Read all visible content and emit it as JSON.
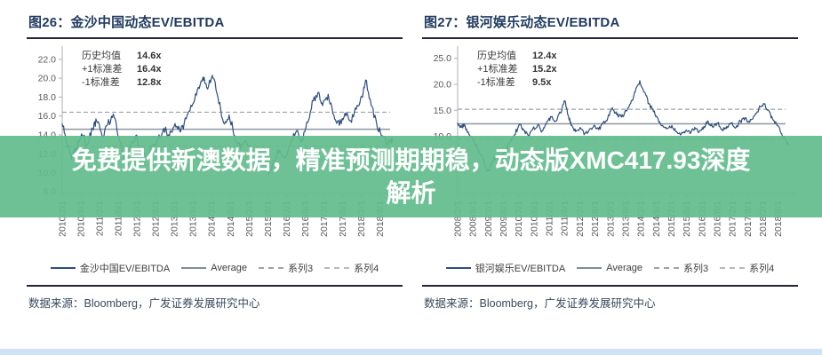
{
  "watermark": {
    "text": "免费提供新澳数据，精准预测期期稳，动态版XMC417.93深度解析",
    "lines": [
      "免费提供新澳数据，精准预测期期稳，动态版XMC417.93深度",
      "解析"
    ],
    "bg_color": "#62bc8c",
    "text_color": "#ffffff"
  },
  "colors": {
    "main_line": "#2e4e7e",
    "average_line": "#8e979e",
    "sd_line": "#9aa2a9",
    "axis": "#b9bdc2",
    "tick_text": "#595959",
    "title_text": "#1f3a5f"
  },
  "panels": [
    {
      "title": "图26：金沙中国动态EV/EBITDA",
      "stats": [
        {
          "label": "历史均值",
          "value": "14.6x"
        },
        {
          "label": "+1标准差",
          "value": "16.4x"
        },
        {
          "label": "-1标准差",
          "value": "12.8x"
        }
      ],
      "legend": [
        "金沙中国EV/EBITDA",
        "Average",
        "系列3",
        "系列4"
      ],
      "source": "数据来源：Bloomberg，广发证券发展研究中心"
    },
    {
      "title": "图27：银河娱乐动态EV/EBITDA",
      "stats": [
        {
          "label": "历史均值",
          "value": "12.4x"
        },
        {
          "label": "+1标准差",
          "value": "15.2x"
        },
        {
          "label": "-1标准差",
          "value": "9.5x"
        }
      ],
      "legend": [
        "银河娱乐EV/EBITDA",
        "Average",
        "系列3",
        "系列4"
      ],
      "source": "数据来源：Bloomberg，广发证券发展研究中心"
    }
  ],
  "chart_data": [
    {
      "type": "line",
      "title": "金沙中国动态EV/EBITDA",
      "xlabel": "",
      "ylabel": "",
      "legend_position": "bottom",
      "grid": false,
      "ylim": [
        7.8,
        23.2
      ],
      "y_ticks": [
        8,
        10,
        12,
        14,
        16,
        18,
        20,
        22
      ],
      "x_range": [
        2010.083,
        2019.0
      ],
      "x_tick_labels": [
        "2010/2/1",
        "2010/8/1",
        "2011/2/1",
        "2011/8/1",
        "2012/2/1",
        "2012/8/1",
        "2013/2/1",
        "2013/8/1",
        "2014/2/1",
        "2014/8/1",
        "2015/2/1",
        "2015/8/1",
        "2016/2/1",
        "2016/8/1",
        "2017/2/1",
        "2017/8/1",
        "2018/2/1",
        "2018/8/1"
      ],
      "mean": 14.6,
      "plus1sd": 16.4,
      "minus1sd": 12.8,
      "series": [
        {
          "name": "金沙中国EV/EBITDA",
          "points": [
            [
              2010.08,
              15.2
            ],
            [
              2010.2,
              13.2
            ],
            [
              2010.33,
              11.4
            ],
            [
              2010.45,
              12.6
            ],
            [
              2010.6,
              14.1
            ],
            [
              2010.75,
              13.0
            ],
            [
              2010.9,
              14.6
            ],
            [
              2011.0,
              15.5
            ],
            [
              2011.15,
              13.9
            ],
            [
              2011.3,
              15.1
            ],
            [
              2011.45,
              16.2
            ],
            [
              2011.6,
              13.8
            ],
            [
              2011.75,
              11.2
            ],
            [
              2011.9,
              12.6
            ],
            [
              2012.05,
              13.9
            ],
            [
              2012.2,
              12.1
            ],
            [
              2012.35,
              11.6
            ],
            [
              2012.5,
              12.9
            ],
            [
              2012.65,
              13.7
            ],
            [
              2012.8,
              14.7
            ],
            [
              2012.95,
              13.9
            ],
            [
              2013.1,
              15.2
            ],
            [
              2013.25,
              14.3
            ],
            [
              2013.4,
              15.7
            ],
            [
              2013.55,
              17.0
            ],
            [
              2013.7,
              18.8
            ],
            [
              2013.85,
              20.1
            ],
            [
              2013.95,
              19.0
            ],
            [
              2014.1,
              20.3
            ],
            [
              2014.25,
              18.0
            ],
            [
              2014.4,
              15.3
            ],
            [
              2014.55,
              16.1
            ],
            [
              2014.7,
              13.9
            ],
            [
              2014.85,
              12.5
            ],
            [
              2015.0,
              13.4
            ],
            [
              2015.15,
              11.9
            ],
            [
              2015.3,
              10.5
            ],
            [
              2015.45,
              11.7
            ],
            [
              2015.6,
              9.9
            ],
            [
              2015.75,
              11.3
            ],
            [
              2015.9,
              12.4
            ],
            [
              2016.05,
              11.5
            ],
            [
              2016.2,
              13.1
            ],
            [
              2016.35,
              14.4
            ],
            [
              2016.5,
              13.5
            ],
            [
              2016.65,
              15.3
            ],
            [
              2016.8,
              17.6
            ],
            [
              2016.95,
              18.5
            ],
            [
              2017.05,
              17.1
            ],
            [
              2017.2,
              18.3
            ],
            [
              2017.35,
              16.1
            ],
            [
              2017.5,
              15.0
            ],
            [
              2017.65,
              16.3
            ],
            [
              2017.8,
              15.5
            ],
            [
              2017.95,
              16.7
            ],
            [
              2018.1,
              18.1
            ],
            [
              2018.2,
              19.8
            ],
            [
              2018.35,
              17.1
            ],
            [
              2018.5,
              15.1
            ],
            [
              2018.65,
              13.9
            ],
            [
              2018.8,
              12.9
            ],
            [
              2018.92,
              13.7
            ]
          ]
        },
        {
          "name": "Average",
          "value": 14.6
        },
        {
          "name": "系列3",
          "value": 16.4
        },
        {
          "name": "系列4",
          "value": 12.8
        }
      ]
    },
    {
      "type": "line",
      "title": "银河娱乐动态EV/EBITDA",
      "xlabel": "",
      "ylabel": "",
      "legend_position": "bottom",
      "grid": false,
      "ylim": [
        -1,
        27
      ],
      "y_ticks": [
        5,
        10,
        15,
        20,
        25
      ],
      "x_range": [
        2008.083,
        2019.0
      ],
      "x_tick_labels": [
        "2008/2/1",
        "2008/8/1",
        "2009/2/1",
        "2009/8/1",
        "2010/2/1",
        "2010/8/1",
        "2011/2/1",
        "2011/8/1",
        "2012/2/1",
        "2012/8/1",
        "2013/2/1",
        "2013/8/1",
        "2014/2/1",
        "2014/8/1",
        "2015/2/1",
        "2015/8/1",
        "2016/2/1",
        "2016/8/1",
        "2017/2/1",
        "2017/8/1",
        "2018/2/1",
        "2018/8/1"
      ],
      "mean": 12.4,
      "plus1sd": 15.2,
      "minus1sd": 9.5,
      "series": [
        {
          "name": "银河娱乐EV/EBITDA",
          "points": [
            [
              2008.08,
              12.6
            ],
            [
              2008.2,
              11.7
            ],
            [
              2008.3,
              12.3
            ],
            [
              2008.45,
              10.4
            ],
            [
              2008.6,
              9.1
            ],
            [
              2008.75,
              7.7
            ],
            [
              2008.9,
              5.6
            ],
            [
              2009.0,
              4.1
            ],
            [
              2009.1,
              3.3
            ],
            [
              2009.2,
              4.9
            ],
            [
              2009.35,
              6.3
            ],
            [
              2009.5,
              5.5
            ],
            [
              2009.65,
              7.1
            ],
            [
              2009.8,
              8.9
            ],
            [
              2009.95,
              10.3
            ],
            [
              2010.1,
              12.3
            ],
            [
              2010.25,
              11.1
            ],
            [
              2010.4,
              10.1
            ],
            [
              2010.55,
              11.5
            ],
            [
              2010.7,
              12.1
            ],
            [
              2010.85,
              11.0
            ],
            [
              2011.0,
              12.7
            ],
            [
              2011.15,
              13.7
            ],
            [
              2011.3,
              12.9
            ],
            [
              2011.45,
              14.5
            ],
            [
              2011.6,
              16.8
            ],
            [
              2011.7,
              14.1
            ],
            [
              2011.8,
              12.1
            ],
            [
              2011.95,
              10.9
            ],
            [
              2012.1,
              11.7
            ],
            [
              2012.25,
              10.5
            ],
            [
              2012.4,
              11.3
            ],
            [
              2012.55,
              12.1
            ],
            [
              2012.7,
              11.3
            ],
            [
              2012.85,
              12.7
            ],
            [
              2013.0,
              13.5
            ],
            [
              2013.15,
              15.5
            ],
            [
              2013.3,
              14.1
            ],
            [
              2013.45,
              13.7
            ],
            [
              2013.6,
              14.9
            ],
            [
              2013.75,
              16.3
            ],
            [
              2013.9,
              18.5
            ],
            [
              2014.05,
              20.7
            ],
            [
              2014.2,
              18.5
            ],
            [
              2014.35,
              16.3
            ],
            [
              2014.5,
              14.7
            ],
            [
              2014.65,
              13.3
            ],
            [
              2014.8,
              12.1
            ],
            [
              2014.95,
              11.5
            ],
            [
              2015.1,
              12.1
            ],
            [
              2015.25,
              10.9
            ],
            [
              2015.4,
              10.3
            ],
            [
              2015.55,
              11.1
            ],
            [
              2015.7,
              10.5
            ],
            [
              2015.85,
              11.7
            ],
            [
              2016.0,
              10.9
            ],
            [
              2016.15,
              11.9
            ],
            [
              2016.3,
              12.7
            ],
            [
              2016.45,
              11.7
            ],
            [
              2016.6,
              12.5
            ],
            [
              2016.75,
              11.3
            ],
            [
              2016.9,
              11.9
            ],
            [
              2017.05,
              12.5
            ],
            [
              2017.2,
              11.7
            ],
            [
              2017.35,
              12.9
            ],
            [
              2017.5,
              13.5
            ],
            [
              2017.65,
              12.7
            ],
            [
              2017.8,
              13.9
            ],
            [
              2017.95,
              15.3
            ],
            [
              2018.1,
              16.3
            ],
            [
              2018.25,
              15.1
            ],
            [
              2018.4,
              13.3
            ],
            [
              2018.55,
              12.1
            ],
            [
              2018.7,
              10.5
            ],
            [
              2018.85,
              8.9
            ],
            [
              2018.92,
              8.4
            ]
          ]
        },
        {
          "name": "Average",
          "value": 12.4
        },
        {
          "name": "系列3",
          "value": 15.2
        },
        {
          "name": "系列4",
          "value": 9.5
        }
      ]
    }
  ]
}
